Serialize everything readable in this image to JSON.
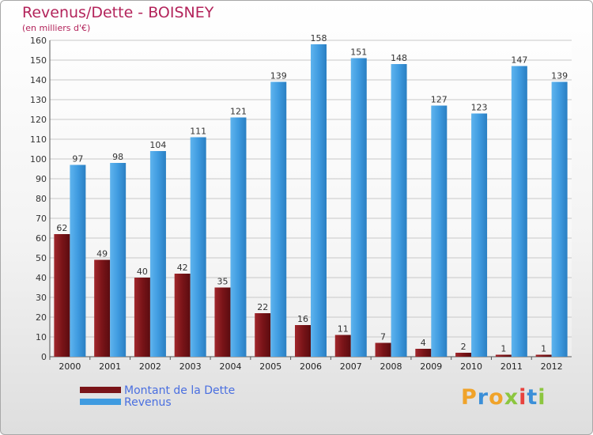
{
  "header": {
    "title": "Revenus/Dette - BOISNEY",
    "subtitle": "(en milliers d'€)"
  },
  "chart_data": {
    "type": "bar",
    "categories": [
      "2000",
      "2001",
      "2002",
      "2003",
      "2004",
      "2005",
      "2006",
      "2007",
      "2008",
      "2009",
      "2010",
      "2011",
      "2012"
    ],
    "series": [
      {
        "name": "Montant de la Dette",
        "color": "#7a1418",
        "values": [
          62,
          49,
          40,
          42,
          35,
          22,
          16,
          11,
          7,
          4,
          2,
          1,
          1
        ]
      },
      {
        "name": "Revenus",
        "color": "#3f9be0",
        "values": [
          97,
          98,
          104,
          111,
          121,
          139,
          158,
          151,
          148,
          127,
          123,
          147,
          139
        ]
      }
    ],
    "ylim": [
      0,
      160
    ],
    "yticks": [
      0,
      10,
      20,
      30,
      40,
      50,
      60,
      70,
      80,
      90,
      100,
      110,
      120,
      130,
      140,
      150,
      160
    ],
    "grid": true,
    "legend_position": "bottom-left"
  },
  "legend": {
    "items": [
      {
        "label": "Montant de la Dette",
        "color": "#7a1418"
      },
      {
        "label": "Revenus",
        "color": "#3f9be0"
      }
    ]
  },
  "branding": {
    "logo_text": "Proxiti",
    "logo_colors": [
      "#f0a32a",
      "#3b8fd8",
      "#f0a32a",
      "#8cc63f",
      "#e8423d",
      "#3b8fd8",
      "#8cc63f"
    ]
  }
}
